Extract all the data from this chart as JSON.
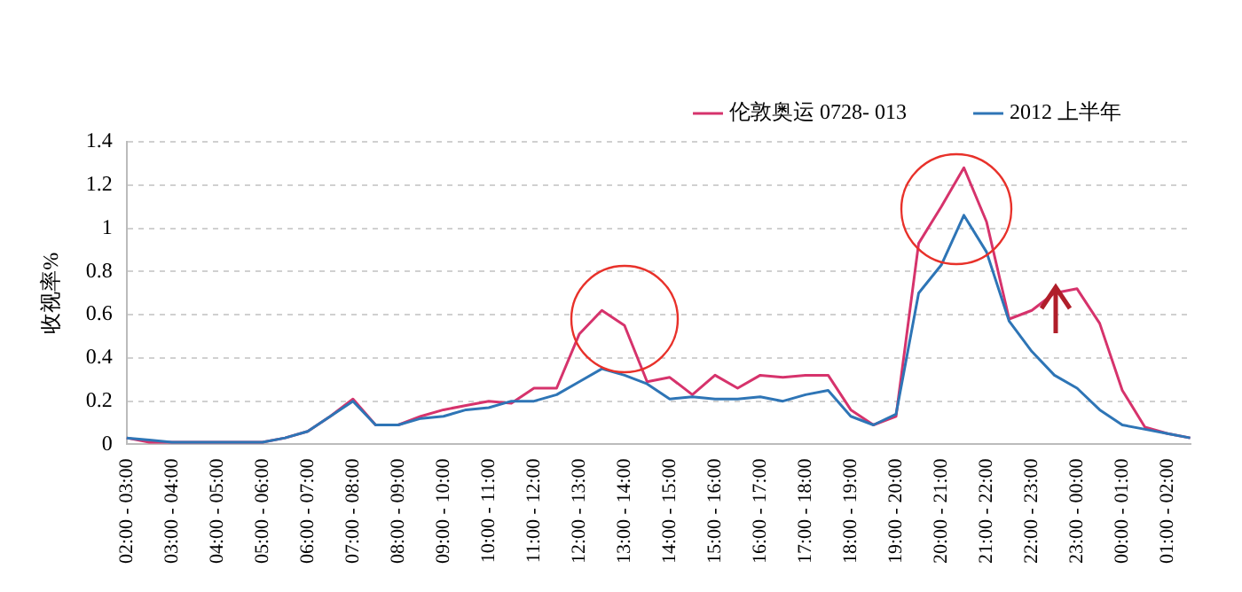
{
  "chart_data": {
    "type": "line",
    "ylabel": "收视率%",
    "categories": [
      "02:00 - 03:00",
      null,
      "03:00 - 04:00",
      null,
      "04:00 - 05:00",
      null,
      "05:00 - 06:00",
      null,
      "06:00 - 07:00",
      null,
      "07:00 - 08:00",
      null,
      "08:00 - 09:00",
      null,
      "09:00 - 10:00",
      null,
      "10:00 - 11:00",
      null,
      "11:00 - 12:00",
      null,
      "12:00 - 13:00",
      null,
      "13:00 - 14:00",
      null,
      "14:00 - 15:00",
      null,
      "15:00 - 16:00",
      null,
      "16:00 - 17:00",
      null,
      "17:00 - 18:00",
      null,
      "18:00 - 19:00",
      null,
      "19:00 - 20:00",
      null,
      "20:00 - 21:00",
      null,
      "21:00 - 22:00",
      null,
      "22:00 - 23:00",
      null,
      "23:00 - 00:00",
      null,
      "00:00 - 01:00",
      null,
      "01:00 - 02:00",
      null
    ],
    "series": [
      {
        "name": "伦敦奥运 0728- 013",
        "color": "#d6336c",
        "values": [
          0.03,
          0.01,
          0.01,
          0.01,
          0.01,
          0.01,
          0.01,
          0.03,
          0.06,
          0.13,
          0.21,
          0.09,
          0.09,
          0.13,
          0.16,
          0.18,
          0.2,
          0.19,
          0.26,
          0.26,
          0.51,
          0.62,
          0.55,
          0.29,
          0.31,
          0.23,
          0.32,
          0.26,
          0.32,
          0.31,
          0.32,
          0.32,
          0.16,
          0.09,
          0.13,
          0.93,
          1.1,
          1.28,
          1.03,
          0.58,
          0.62,
          0.7,
          0.72,
          0.56,
          0.25,
          0.08,
          0.05,
          0.03
        ]
      },
      {
        "name": "2012 上半年",
        "color": "#2e75b6",
        "values": [
          0.03,
          0.02,
          0.01,
          0.01,
          0.01,
          0.01,
          0.01,
          0.03,
          0.06,
          0.13,
          0.2,
          0.09,
          0.09,
          0.12,
          0.13,
          0.16,
          0.17,
          0.2,
          0.2,
          0.23,
          0.29,
          0.35,
          0.32,
          0.28,
          0.21,
          0.22,
          0.21,
          0.21,
          0.22,
          0.2,
          0.23,
          0.25,
          0.13,
          0.09,
          0.14,
          0.7,
          0.83,
          1.06,
          0.89,
          0.57,
          0.43,
          0.32,
          0.26,
          0.16,
          0.09,
          0.07,
          0.05,
          0.03
        ]
      }
    ],
    "ylim": [
      0,
      1.4
    ],
    "yticks": [
      0,
      0.2,
      0.4,
      0.6,
      0.8,
      1,
      1.2,
      1.4
    ],
    "grid": "y",
    "legend": "top right",
    "marker": "none",
    "line_style": "solid"
  }
}
